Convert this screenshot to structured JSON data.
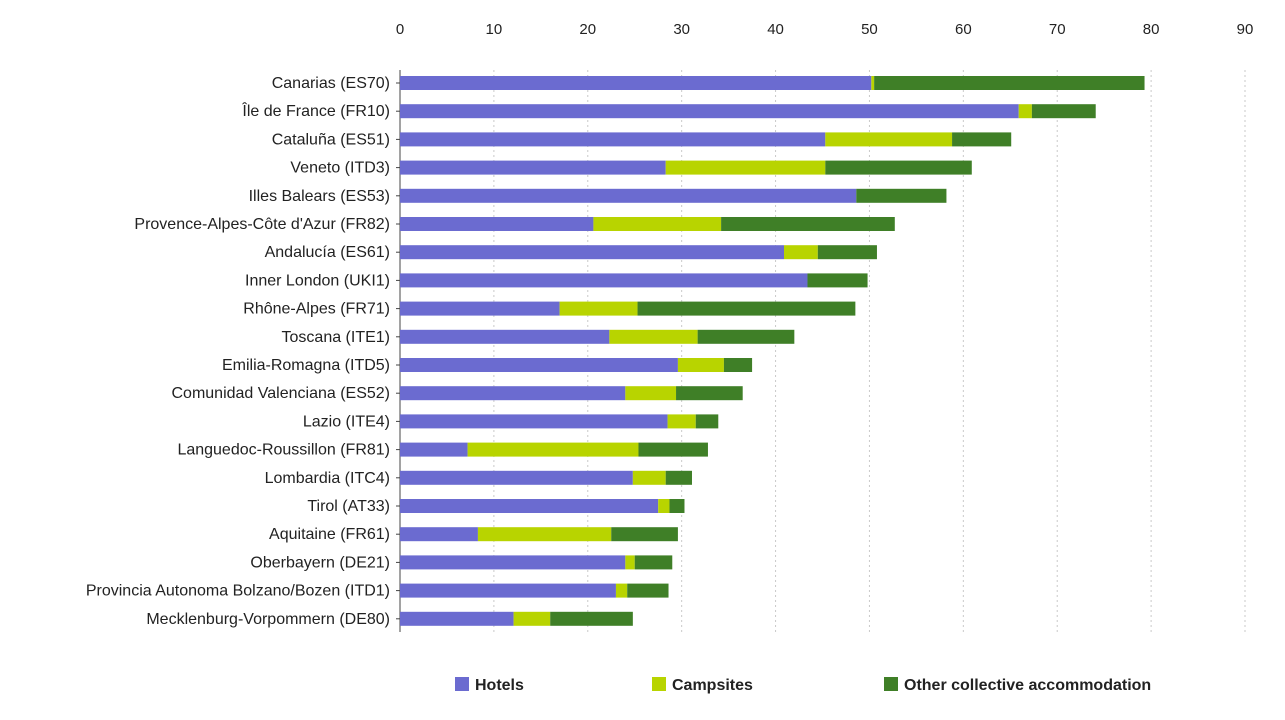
{
  "chart_data": {
    "type": "bar",
    "orientation": "horizontal",
    "stacked": true,
    "x_axis_position": "top",
    "xlim": [
      0,
      90
    ],
    "x_ticks": [
      0,
      10,
      20,
      30,
      40,
      50,
      60,
      70,
      80,
      90
    ],
    "grid": true,
    "legend_position": "bottom",
    "categories": [
      "Canarias (ES70)",
      "Île de France (FR10)",
      "Cataluña (ES51)",
      "Veneto (ITD3)",
      "Illes Balears (ES53)",
      "Provence-Alpes-Côte d'Azur (FR82)",
      "Andalucía (ES61)",
      "Inner London (UKI1)",
      "Rhône-Alpes (FR71)",
      "Toscana (ITE1)",
      "Emilia-Romagna (ITD5)",
      "Comunidad Valenciana (ES52)",
      "Lazio (ITE4)",
      "Languedoc-Roussillon (FR81)",
      "Lombardia (ITC4)",
      "Tirol (AT33)",
      "Aquitaine (FR61)",
      "Oberbayern (DE21)",
      "Provincia Autonoma Bolzano/Bozen (ITD1)",
      "Mecklenburg-Vorpommern (DE80)"
    ],
    "series": [
      {
        "name": "Hotels",
        "color": "#6b6bd0",
        "values": [
          50.2,
          65.9,
          45.3,
          28.3,
          48.6,
          20.6,
          40.9,
          43.4,
          17.0,
          22.3,
          29.6,
          24.0,
          28.5,
          7.2,
          24.8,
          27.5,
          8.3,
          24.0,
          23.0,
          12.1
        ]
      },
      {
        "name": "Campsites",
        "color": "#b8d400",
        "values": [
          0.3,
          1.4,
          13.5,
          17.0,
          0,
          13.6,
          3.6,
          0,
          8.3,
          9.4,
          4.9,
          5.4,
          3.0,
          18.2,
          3.5,
          1.2,
          14.2,
          1.0,
          1.2,
          3.9
        ]
      },
      {
        "name": "Other collective accommodation",
        "color": "#3f7f27",
        "values": [
          28.8,
          6.8,
          6.3,
          15.6,
          9.6,
          18.5,
          6.3,
          6.4,
          23.2,
          10.3,
          3.0,
          7.1,
          2.4,
          7.4,
          2.8,
          1.6,
          7.1,
          4.0,
          4.4,
          8.8
        ]
      }
    ]
  }
}
